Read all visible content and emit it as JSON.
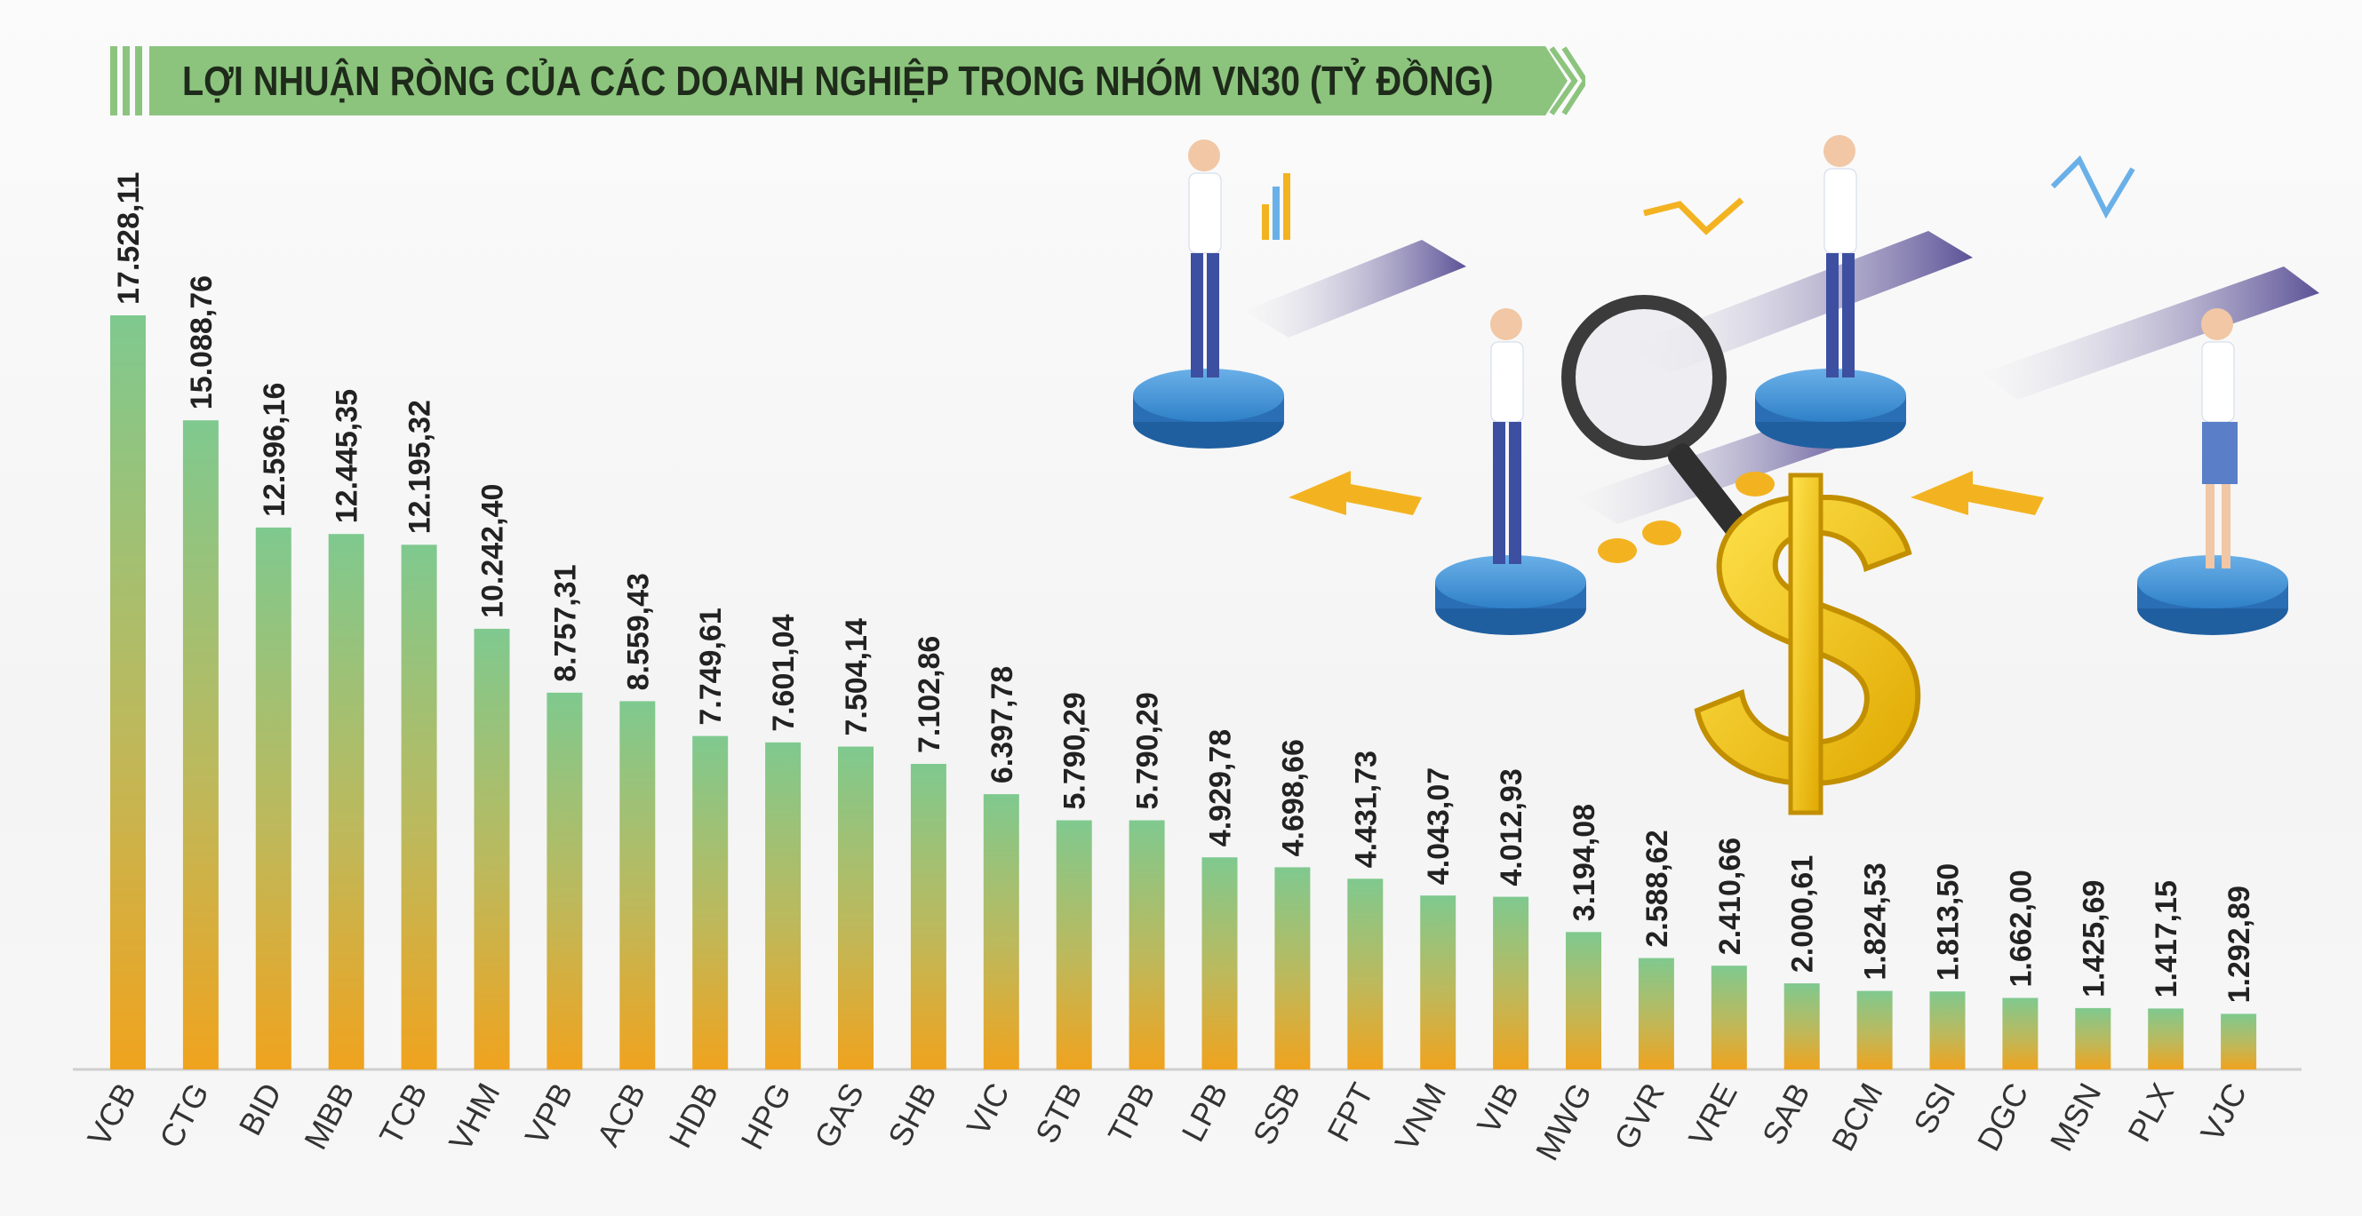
{
  "title": "LỢI NHUẬN RÒNG CỦA CÁC DOANH NGHIỆP TRONG NHÓM VN30 (TỶ ĐỒNG)",
  "colors": {
    "banner": "#8cc47e",
    "bar_top": "#7fc98f",
    "bar_bottom": "#f0a31e",
    "text": "#222222"
  },
  "chart_data": {
    "type": "bar",
    "title": "LỢI NHUẬN RÒNG CỦA CÁC DOANH NGHIỆP TRONG NHÓM VN30 (TỶ ĐỒNG)",
    "xlabel": "",
    "ylabel": "",
    "grid": false,
    "legend": "none",
    "categories": [
      "VCB",
      "CTG",
      "BID",
      "MBB",
      "TCB",
      "VHM",
      "VPB",
      "ACB",
      "HDB",
      "HPG",
      "GAS",
      "SHB",
      "VIC",
      "STB",
      "TPB",
      "LPB",
      "SSB",
      "FPT",
      "VNM",
      "VIB",
      "MWG",
      "GVR",
      "VRE",
      "SAB",
      "BCM",
      "SSI",
      "DGC",
      "MSN",
      "PLX",
      "VJC"
    ],
    "values": [
      17528.11,
      15088.76,
      12596.16,
      12445.35,
      12195.32,
      10242.4,
      8757.31,
      8559.43,
      7749.61,
      7601.04,
      7504.14,
      7102.86,
      6397.78,
      5790.29,
      5790.29,
      4929.78,
      4698.66,
      4431.73,
      4043.07,
      4012.93,
      3194.08,
      2588.62,
      2410.66,
      2000.61,
      1824.53,
      1813.5,
      1662.0,
      1425.69,
      1417.15,
      1292.89
    ],
    "value_labels": [
      "17.528,11",
      "15.088,76",
      "12.596,16",
      "12.445,35",
      "12.195,32",
      "10.242,40",
      "8.757,31",
      "8.559,43",
      "7.749,61",
      "7.601,04",
      "7.504,14",
      "7.102,86",
      "6.397,78",
      "5.790,29",
      "5.790,29",
      "4.929,78",
      "4.698,66",
      "4.431,73",
      "4.043,07",
      "4.012,93",
      "3.194,08",
      "2.588,62",
      "2.410,66",
      "2.000,61",
      "1.824,53",
      "1.813,50",
      "1.662,00",
      "1.425,69",
      "1.417,15",
      "1.292,89"
    ],
    "ylim": [
      0,
      17528.11
    ]
  }
}
